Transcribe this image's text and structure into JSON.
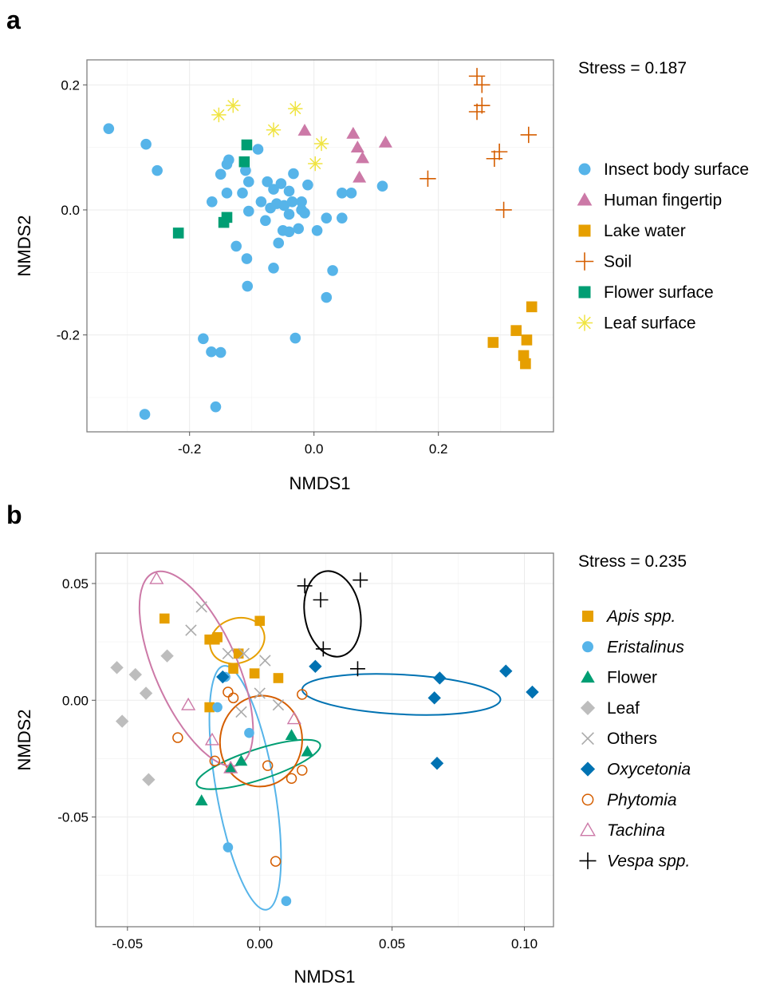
{
  "chart_data": [
    {
      "panel": "a",
      "type": "scatter",
      "stress": "Stress = 0.187",
      "xlabel": "NMDS1",
      "ylabel": "NMDS2",
      "xlim": [
        -0.365,
        0.385
      ],
      "ylim": [
        -0.355,
        0.24
      ],
      "xticks": [
        -0.2,
        0.0,
        0.2
      ],
      "xtick_labels": [
        "-0.2",
        "0.0",
        "0.2"
      ],
      "yticks": [
        -0.2,
        0.0,
        0.2
      ],
      "ytick_labels": [
        "-0.2",
        "0.0",
        "0.2"
      ],
      "grid": true,
      "legend_position": "right",
      "series": [
        {
          "name": "Insect body surface",
          "marker": "circle",
          "color": "#56B4E9",
          "points": [
            [
              -0.33,
              0.13
            ],
            [
              -0.27,
              0.105
            ],
            [
              -0.252,
              0.063
            ],
            [
              -0.15,
              0.057
            ],
            [
              -0.14,
              0.073
            ],
            [
              -0.137,
              0.08
            ],
            [
              -0.11,
              0.063
            ],
            [
              -0.09,
              0.097
            ],
            [
              -0.105,
              0.045
            ],
            [
              -0.14,
              0.027
            ],
            [
              -0.164,
              0.013
            ],
            [
              -0.115,
              0.027
            ],
            [
              -0.075,
              0.045
            ],
            [
              -0.065,
              0.033
            ],
            [
              -0.053,
              0.042
            ],
            [
              -0.033,
              0.058
            ],
            [
              -0.04,
              0.03
            ],
            [
              -0.01,
              0.04
            ],
            [
              -0.02,
              0.013
            ],
            [
              -0.048,
              0.007
            ],
            [
              -0.06,
              0.01
            ],
            [
              -0.085,
              0.013
            ],
            [
              -0.105,
              -0.002
            ],
            [
              -0.078,
              -0.017
            ],
            [
              -0.07,
              0.003
            ],
            [
              -0.04,
              -0.007
            ],
            [
              -0.035,
              0.013
            ],
            [
              -0.02,
              0.0
            ],
            [
              -0.015,
              -0.005
            ],
            [
              -0.05,
              -0.033
            ],
            [
              -0.04,
              -0.035
            ],
            [
              -0.025,
              -0.03
            ],
            [
              0.005,
              -0.033
            ],
            [
              0.02,
              -0.013
            ],
            [
              0.045,
              -0.013
            ],
            [
              0.045,
              0.027
            ],
            [
              0.06,
              0.027
            ],
            [
              0.11,
              0.038
            ],
            [
              -0.125,
              -0.058
            ],
            [
              -0.108,
              -0.078
            ],
            [
              -0.057,
              -0.053
            ],
            [
              -0.065,
              -0.093
            ],
            [
              -0.107,
              -0.122
            ],
            [
              0.03,
              -0.097
            ],
            [
              0.02,
              -0.14
            ],
            [
              -0.03,
              -0.205
            ],
            [
              -0.178,
              -0.206
            ],
            [
              -0.165,
              -0.227
            ],
            [
              -0.15,
              -0.228
            ],
            [
              -0.158,
              -0.315
            ],
            [
              -0.272,
              -0.327
            ]
          ]
        },
        {
          "name": "Human fingertip",
          "marker": "triangle",
          "color": "#CC79A7",
          "points": [
            [
              -0.015,
              0.127
            ],
            [
              0.063,
              0.122
            ],
            [
              0.07,
              0.1
            ],
            [
              0.078,
              0.083
            ],
            [
              0.073,
              0.052
            ],
            [
              0.115,
              0.108
            ]
          ]
        },
        {
          "name": "Lake water",
          "marker": "square",
          "color": "#E69F00",
          "points": [
            [
              0.288,
              -0.212
            ],
            [
              0.325,
              -0.193
            ],
            [
              0.342,
              -0.208
            ],
            [
              0.337,
              -0.233
            ],
            [
              0.34,
              -0.246
            ],
            [
              0.35,
              -0.155
            ]
          ]
        },
        {
          "name": "Soil",
          "marker": "plus",
          "color": "#D55E00",
          "points": [
            [
              0.262,
              0.214
            ],
            [
              0.27,
              0.2
            ],
            [
              0.27,
              0.167
            ],
            [
              0.262,
              0.157
            ],
            [
              0.298,
              0.093
            ],
            [
              0.29,
              0.082
            ],
            [
              0.345,
              0.12
            ],
            [
              0.305,
              0.0
            ],
            [
              0.183,
              0.05
            ]
          ]
        },
        {
          "name": "Flower surface",
          "marker": "square",
          "color": "#009E73",
          "points": [
            [
              -0.108,
              0.104
            ],
            [
              -0.112,
              0.077
            ],
            [
              -0.218,
              -0.037
            ],
            [
              -0.14,
              -0.012
            ],
            [
              -0.145,
              -0.02
            ]
          ]
        },
        {
          "name": "Leaf surface",
          "marker": "asterisk",
          "color": "#F0E442",
          "points": [
            [
              -0.13,
              0.167
            ],
            [
              -0.153,
              0.152
            ],
            [
              -0.065,
              0.128
            ],
            [
              -0.03,
              0.162
            ],
            [
              0.012,
              0.106
            ],
            [
              0.002,
              0.074
            ]
          ]
        }
      ]
    },
    {
      "panel": "b",
      "type": "scatter",
      "stress": "Stress = 0.235",
      "xlabel": "NMDS1",
      "ylabel": "NMDS2",
      "xlim": [
        -0.062,
        0.111
      ],
      "ylim": [
        -0.097,
        0.063
      ],
      "xticks": [
        -0.05,
        0.0,
        0.05,
        0.1
      ],
      "xtick_labels": [
        "-0.05",
        "0.00",
        "0.05",
        "0.10"
      ],
      "yticks": [
        -0.05,
        0.0,
        0.05
      ],
      "ytick_labels": [
        "-0.05",
        "0.00",
        "0.05"
      ],
      "grid": true,
      "legend_position": "right",
      "series": [
        {
          "name": "Apis spp.",
          "italic": true,
          "marker": "square",
          "color": "#E69F00",
          "points": [
            [
              -0.036,
              0.035
            ],
            [
              -0.019,
              0.026
            ],
            [
              -0.016,
              0.027
            ],
            [
              -0.017,
              0.026
            ],
            [
              -0.008,
              0.02
            ],
            [
              -0.01,
              0.0135
            ],
            [
              -0.002,
              0.0115
            ],
            [
              0.0,
              0.034
            ],
            [
              0.007,
              0.0095
            ],
            [
              -0.019,
              -0.003
            ]
          ],
          "ellipse": {
            "cx": -0.0085,
            "cy": 0.0255,
            "rx": 0.0105,
            "ry": 0.0095,
            "angle": -20
          }
        },
        {
          "name": "Eristalinus",
          "italic": true,
          "marker": "circle",
          "color": "#56B4E9",
          "points": [
            [
              -0.013,
              0.01
            ],
            [
              -0.016,
              -0.003
            ],
            [
              -0.004,
              -0.014
            ],
            [
              -0.012,
              -0.063
            ],
            [
              0.01,
              -0.086
            ]
          ],
          "ellipse": {
            "cx": -0.0055,
            "cy": -0.0375,
            "rx": 0.011,
            "ry": 0.053,
            "angle": -10
          }
        },
        {
          "name": "Flower",
          "italic": false,
          "marker": "triangle",
          "color": "#009E73",
          "points": [
            [
              0.012,
              -0.015
            ],
            [
              0.018,
              -0.022
            ],
            [
              -0.007,
              -0.026
            ],
            [
              -0.011,
              -0.029
            ],
            [
              -0.022,
              -0.043
            ]
          ],
          "ellipse": {
            "cx": -0.0005,
            "cy": -0.0275,
            "rx": 0.0245,
            "ry": 0.0065,
            "angle": -18
          }
        },
        {
          "name": "Leaf",
          "italic": false,
          "marker": "diamond",
          "color": "#BDBDBD",
          "points": [
            [
              -0.054,
              0.014
            ],
            [
              -0.047,
              0.011
            ],
            [
              -0.035,
              0.019
            ],
            [
              -0.043,
              0.003
            ],
            [
              -0.052,
              -0.009
            ],
            [
              -0.042,
              -0.034
            ]
          ]
        },
        {
          "name": "Others",
          "italic": false,
          "marker": "cross",
          "color": "#AAAAAA",
          "points": [
            [
              -0.022,
              0.04
            ],
            [
              -0.026,
              0.03
            ],
            [
              -0.012,
              0.02
            ],
            [
              -0.006,
              0.02
            ],
            [
              0.002,
              0.017
            ],
            [
              0.0,
              0.003
            ],
            [
              -0.007,
              -0.005
            ],
            [
              0.007,
              -0.002
            ]
          ]
        },
        {
          "name": "Oxycetonia",
          "italic": true,
          "marker": "diamond",
          "color": "#0072B2",
          "points": [
            [
              -0.014,
              0.01
            ],
            [
              0.021,
              0.0145
            ],
            [
              0.066,
              0.001
            ],
            [
              0.068,
              0.0095
            ],
            [
              0.093,
              0.0125
            ],
            [
              0.103,
              0.0035
            ],
            [
              0.067,
              -0.027
            ]
          ],
          "ellipse": {
            "cx": 0.0535,
            "cy": 0.0025,
            "rx": 0.0375,
            "ry": 0.0085,
            "angle": 3
          }
        },
        {
          "name": "Phytomia",
          "italic": true,
          "marker": "circle-open",
          "color": "#D55E00",
          "points": [
            [
              -0.012,
              0.0035
            ],
            [
              -0.01,
              0.001
            ],
            [
              -0.031,
              -0.016
            ],
            [
              -0.017,
              -0.026
            ],
            [
              0.003,
              -0.028
            ],
            [
              0.012,
              -0.0335
            ],
            [
              0.016,
              -0.03
            ],
            [
              0.016,
              0.0025
            ],
            [
              0.006,
              -0.069
            ]
          ],
          "ellipse": {
            "cx": 0.0005,
            "cy": -0.0175,
            "rx": 0.0155,
            "ry": 0.0195,
            "angle": 8
          }
        },
        {
          "name": "Tachina",
          "italic": true,
          "marker": "triangle-open",
          "color": "#CC79A7",
          "points": [
            [
              -0.039,
              0.052
            ],
            [
              -0.027,
              -0.002
            ],
            [
              -0.018,
              -0.017
            ],
            [
              -0.011,
              -0.029
            ],
            [
              0.013,
              -0.008
            ]
          ],
          "ellipse": {
            "cx": -0.024,
            "cy": 0.0135,
            "rx": 0.0155,
            "ry": 0.045,
            "angle": -24
          }
        },
        {
          "name": "Vespa spp.",
          "italic": true,
          "marker": "plus",
          "color": "#000000",
          "points": [
            [
              0.017,
              0.049
            ],
            [
              0.023,
              0.043
            ],
            [
              0.038,
              0.0515
            ],
            [
              0.024,
              0.022
            ],
            [
              0.037,
              0.0135
            ]
          ],
          "ellipse": {
            "cx": 0.0275,
            "cy": 0.037,
            "rx": 0.0105,
            "ry": 0.0185,
            "angle": -10
          }
        }
      ]
    }
  ]
}
